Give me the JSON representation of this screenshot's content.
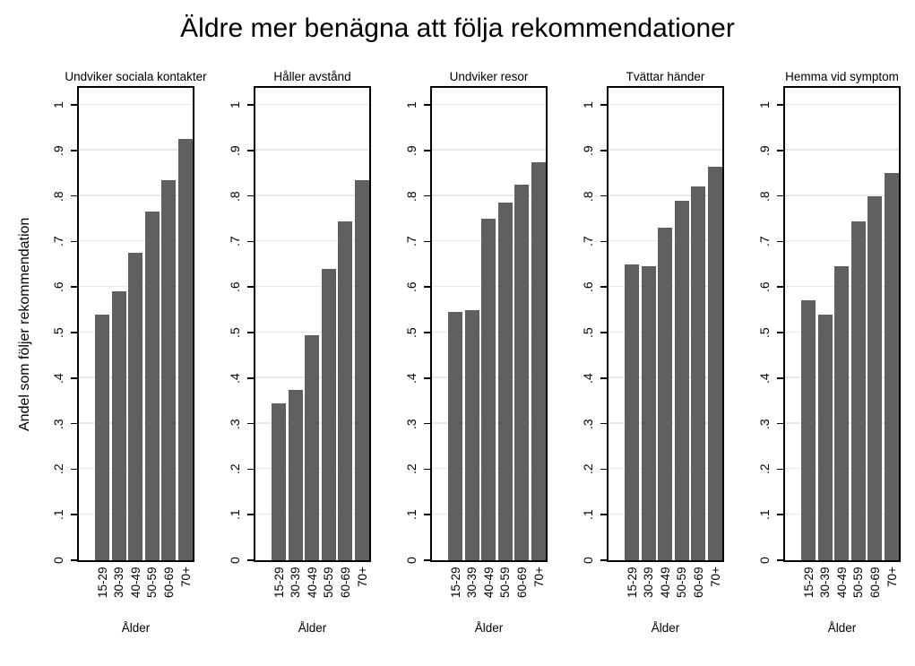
{
  "title": "Äldre mer benägna att följa rekommendationer",
  "y_axis": {
    "label": "Andel som följer rekommendation",
    "tick_labels": [
      "0",
      ".1",
      ".2",
      ".3",
      ".4",
      ".5",
      ".6",
      ".7",
      ".8",
      ".9",
      "1"
    ]
  },
  "x_axis": {
    "label": "Ålder",
    "tick_labels": [
      "15-29",
      "30-39",
      "40-49",
      "50-59",
      "60-69",
      "70+"
    ]
  },
  "colors": {
    "bar": "#606060",
    "gridline": "#e8e8e8",
    "axis": "#000000",
    "background": "#ffffff",
    "text": "#000000"
  },
  "chart_data": {
    "type": "bar",
    "title": "Äldre mer benägna att följa rekommendationer",
    "xlabel": "Ålder",
    "ylabel": "Andel som följer rekommendation",
    "categories": [
      "15-29",
      "30-39",
      "40-49",
      "50-59",
      "60-69",
      "70+"
    ],
    "ylim": [
      0,
      1.045
    ],
    "yticks": [
      0,
      0.1,
      0.2,
      0.3,
      0.4,
      0.5,
      0.6,
      0.7,
      0.8,
      0.9,
      1
    ],
    "grid": true,
    "legend": "none",
    "panels": [
      {
        "title": "Undviker sociala kontakter",
        "values": [
          0.54,
          0.59,
          0.675,
          0.765,
          0.835,
          0.925
        ]
      },
      {
        "title": "Håller avstånd",
        "values": [
          0.345,
          0.375,
          0.495,
          0.64,
          0.745,
          0.835
        ]
      },
      {
        "title": "Undviker resor",
        "values": [
          0.545,
          0.55,
          0.75,
          0.785,
          0.825,
          0.875
        ]
      },
      {
        "title": "Tvättar händer",
        "values": [
          0.65,
          0.645,
          0.73,
          0.79,
          0.82,
          0.865
        ]
      },
      {
        "title": "Hemma vid symptom",
        "values": [
          0.57,
          0.54,
          0.645,
          0.745,
          0.8,
          0.85
        ]
      }
    ]
  }
}
